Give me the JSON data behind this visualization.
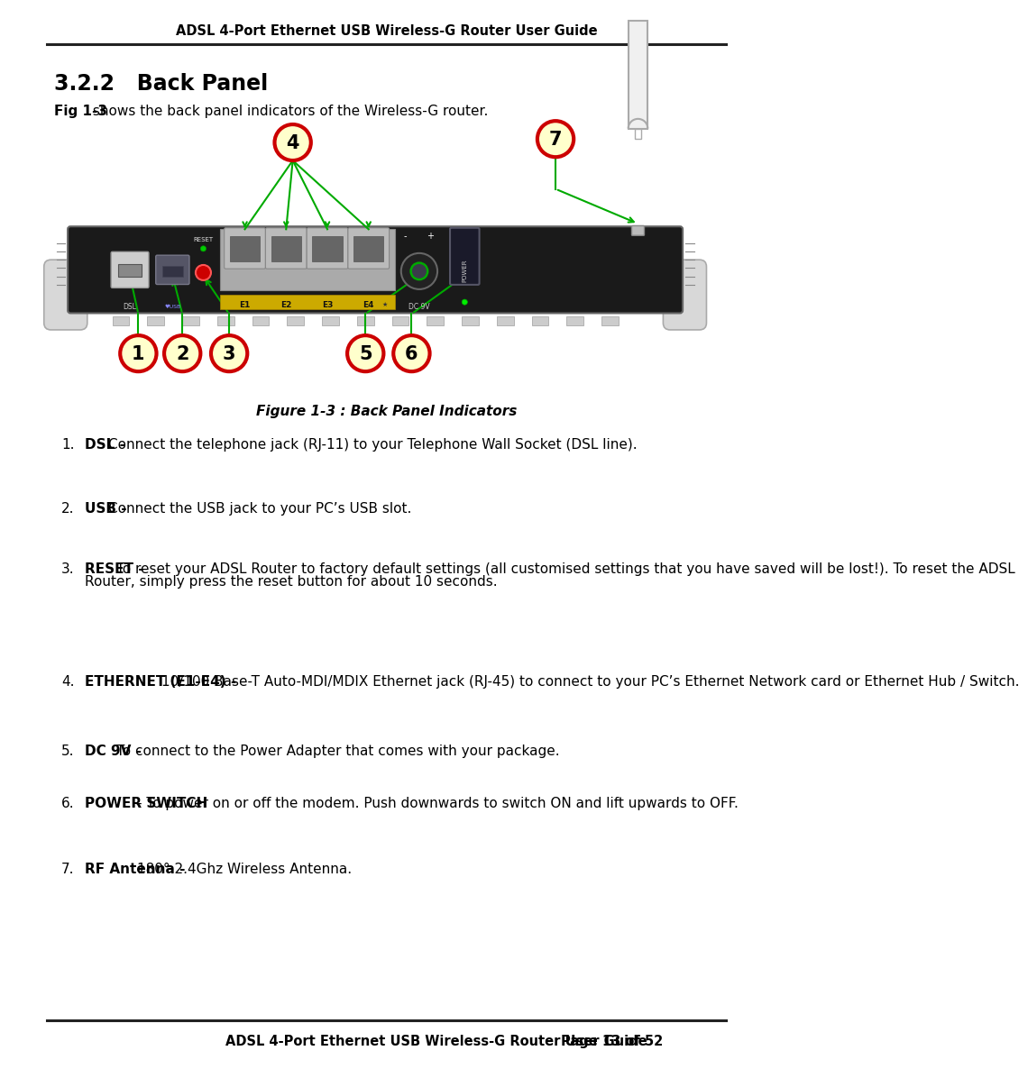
{
  "page_title": "ADSL 4-Port Ethernet USB Wireless-G Router User Guide",
  "footer_title": "ADSL 4-Port Ethernet USB Wireless-G Router User Guide",
  "footer_page": "Page 13 of 52",
  "section": "3.2.2   Back Panel",
  "intro_bold": "Fig 1-3",
  "intro_rest": " shows the back panel indicators of the Wireless-G router.",
  "fig_caption": "Figure 1-3 : Back Panel Indicators",
  "items": [
    {
      "num": 1,
      "bold": "DSL -",
      "text": " Connect the telephone jack (RJ-11) to your Telephone Wall Socket (DSL line)."
    },
    {
      "num": 2,
      "bold": "USB -",
      "text": " Connect the USB jack to your PC’s USB slot."
    },
    {
      "num": 3,
      "bold": "RESET -",
      "text": " To reset your ADSL Router to factory default settings (all customised settings that you have saved will be lost!). To reset the ADSL Router, simply press the reset button for about 10 seconds."
    },
    {
      "num": 4,
      "bold": "ETHERNET (E1-E4) -",
      "text": " 10/100 Base-T Auto-MDI/MDIX Ethernet jack (RJ-45) to connect to your PC’s Ethernet  Network card or Ethernet Hub / Switch."
    },
    {
      "num": 5,
      "bold": "DC 9V -",
      "text": " To connect to the Power Adapter that comes with your package."
    },
    {
      "num": 6,
      "bold": "POWER SWITCH",
      "text": " - To power on or off the modem. Push downwards to switch ON and lift upwards to OFF."
    },
    {
      "num": 7,
      "bold": "RF Antenna -",
      "text": " 180°  2.4Ghz Wireless Antenna."
    }
  ],
  "bg_color": "#ffffff",
  "text_color": "#000000",
  "circle_fill": "#ffffcc",
  "circle_edge": "#cc0000",
  "arrow_color": "#00aa00"
}
